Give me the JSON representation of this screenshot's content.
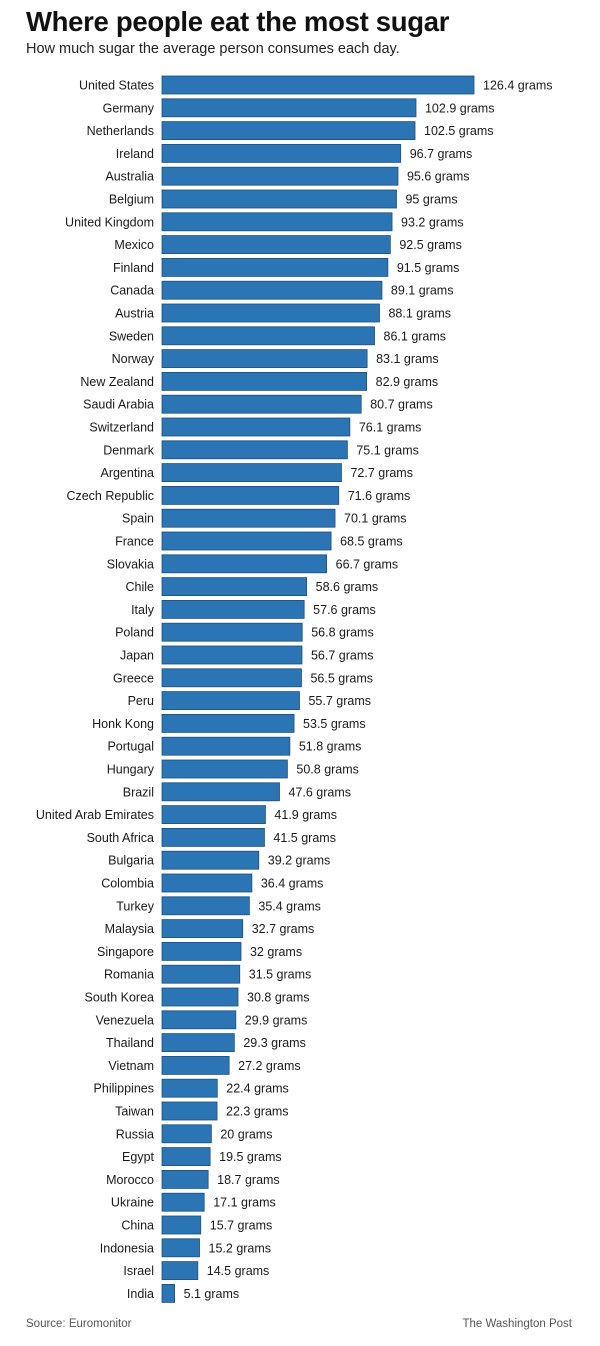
{
  "header": {
    "title": "Where people eat the most sugar",
    "subtitle": "How much sugar the average person consumes each day."
  },
  "footer": {
    "source": "Source: Euromonitor",
    "credit": "The Washington Post"
  },
  "chart_data": {
    "type": "bar",
    "orientation": "horizontal",
    "title": "Where people eat the most sugar",
    "subtitle": "How much sugar the average person consumes each day.",
    "bar_color": "#2b75b5",
    "bar_border_color": "#1c4f80",
    "value_suffix": " grams",
    "categories": [
      "United States",
      "Germany",
      "Netherlands",
      "Ireland",
      "Australia",
      "Belgium",
      "United Kingdom",
      "Mexico",
      "Finland",
      "Canada",
      "Austria",
      "Sweden",
      "Norway",
      "New Zealand",
      "Saudi Arabia",
      "Switzerland",
      "Denmark",
      "Argentina",
      "Czech Republic",
      "Spain",
      "France",
      "Slovakia",
      "Chile",
      "Italy",
      "Poland",
      "Japan",
      "Greece",
      "Peru",
      "Honk Kong",
      "Portugal",
      "Hungary",
      "Brazil",
      "United Arab Emirates",
      "South Africa",
      "Bulgaria",
      "Colombia",
      "Turkey",
      "Malaysia",
      "Singapore",
      "Romania",
      "South Korea",
      "Venezuela",
      "Thailand",
      "Vietnam",
      "Philippines",
      "Taiwan",
      "Russia",
      "Egypt",
      "Morocco",
      "Ukraine",
      "China",
      "Indonesia",
      "Israel",
      "India"
    ],
    "values": [
      126.4,
      102.9,
      102.5,
      96.7,
      95.6,
      95,
      93.2,
      92.5,
      91.5,
      89.1,
      88.1,
      86.1,
      83.1,
      82.9,
      80.7,
      76.1,
      75.1,
      72.7,
      71.6,
      70.1,
      68.5,
      66.7,
      58.6,
      57.6,
      56.8,
      56.7,
      56.5,
      55.7,
      53.5,
      51.8,
      50.8,
      47.6,
      41.9,
      41.5,
      39.2,
      36.4,
      35.4,
      32.7,
      32,
      31.5,
      30.8,
      29.9,
      29.3,
      27.2,
      22.4,
      22.3,
      20,
      19.5,
      18.7,
      17.1,
      15.7,
      15.2,
      14.5,
      5.1
    ],
    "value_labels": [
      "126.4 grams",
      "102.9 grams",
      "102.5 grams",
      "96.7 grams",
      "95.6 grams",
      "95 grams",
      "93.2 grams",
      "92.5 grams",
      "91.5 grams",
      "89.1 grams",
      "88.1 grams",
      "86.1 grams",
      "83.1 grams",
      "82.9 grams",
      "80.7 grams",
      "76.1 grams",
      "75.1 grams",
      "72.7 grams",
      "71.6 grams",
      "70.1 grams",
      "68.5 grams",
      "66.7 grams",
      "58.6 grams",
      "57.6 grams",
      "56.8 grams",
      "56.7 grams",
      "56.5 grams",
      "55.7 grams",
      "53.5 grams",
      "51.8 grams",
      "50.8 grams",
      "47.6 grams",
      "41.9 grams",
      "41.5 grams",
      "39.2 grams",
      "36.4 grams",
      "35.4 grams",
      "32.7 grams",
      "32 grams",
      "31.5 grams",
      "30.8 grams",
      "29.9 grams",
      "29.3 grams",
      "27.2 grams",
      "22.4 grams",
      "22.3 grams",
      "20 grams",
      "19.5 grams",
      "18.7 grams",
      "17.1 grams",
      "15.7 grams",
      "15.2 grams",
      "14.5 grams",
      "5.1 grams"
    ],
    "xlim": [
      0,
      126.4
    ],
    "grid": false,
    "legend": "none"
  }
}
